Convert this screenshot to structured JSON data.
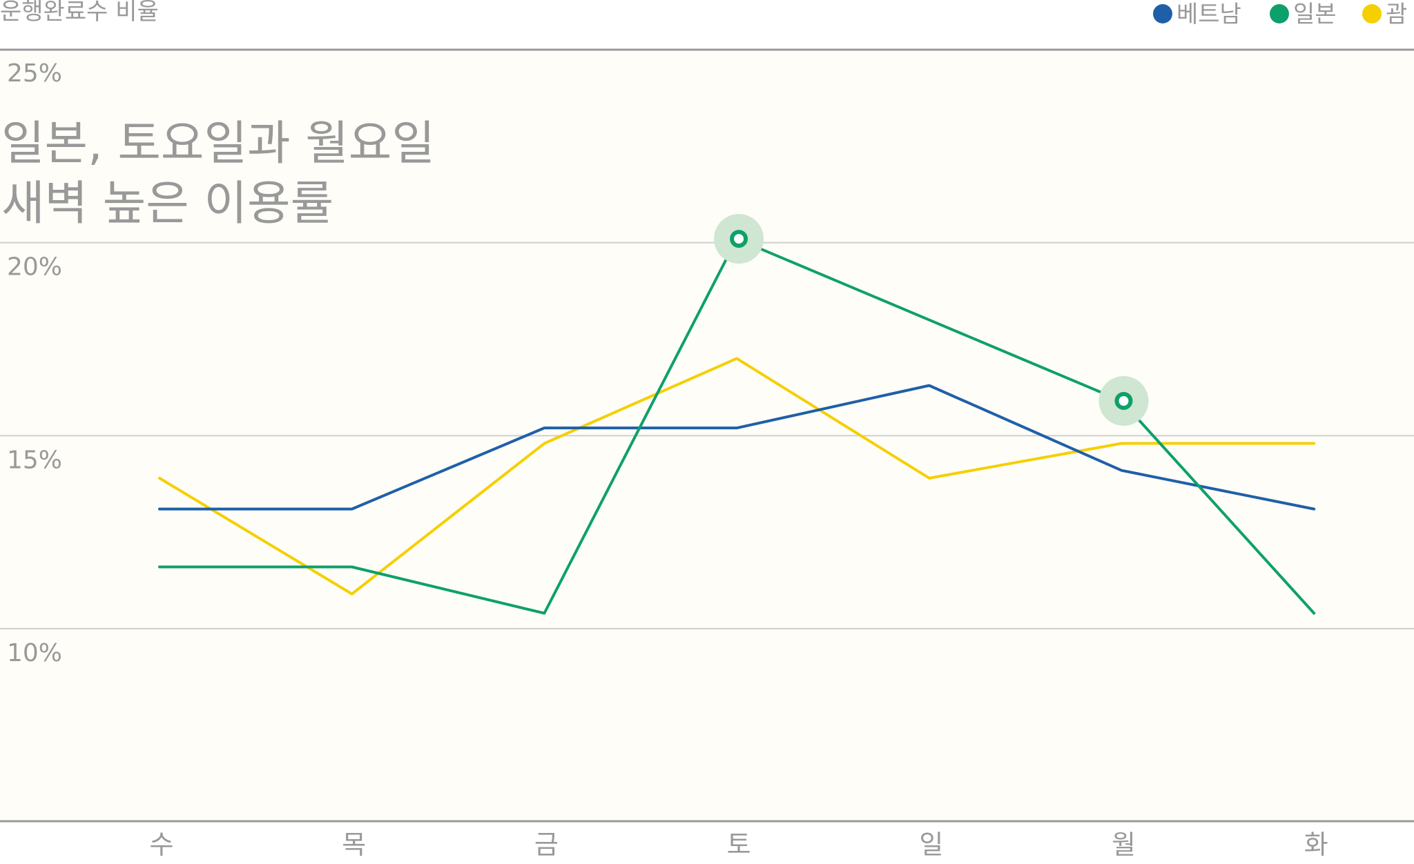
{
  "chart_data": {
    "type": "line",
    "ylabel": "운행완료수 비율",
    "categories": [
      "수",
      "목",
      "금",
      "토",
      "일",
      "월",
      "화"
    ],
    "ylim": [
      5,
      25
    ],
    "yticks": [
      "10%",
      "15%",
      "20%",
      "25%"
    ],
    "grid": true,
    "legend_placement": "top-right",
    "annotation": [
      "일본, 토요일과 월요일",
      "새벽 높은 이용률"
    ],
    "series": [
      {
        "name": "베트남",
        "color": "#1f5fa8",
        "values": [
          13.1,
          13.1,
          15.2,
          15.2,
          16.3,
          14.1,
          13.1
        ]
      },
      {
        "name": "일본",
        "color": "#0ea06a",
        "values": [
          11.6,
          11.6,
          10.4,
          20.1,
          18.0,
          15.9,
          10.4
        ]
      },
      {
        "name": "괌",
        "color": "#f5cf00",
        "values": [
          13.9,
          10.9,
          14.8,
          17.0,
          13.9,
          14.8,
          14.8
        ]
      }
    ],
    "highlighted_points": [
      {
        "series": "일본",
        "category": "토",
        "value": 20.1
      },
      {
        "series": "일본",
        "category": "월",
        "value": 15.9
      }
    ],
    "colors": {
      "plot_background": "#fefdf8",
      "gridline": "#cfcfcf",
      "axis_line": "#9a9a9a",
      "text": "#999999",
      "highlight_halo": "#cfe6d2"
    }
  }
}
